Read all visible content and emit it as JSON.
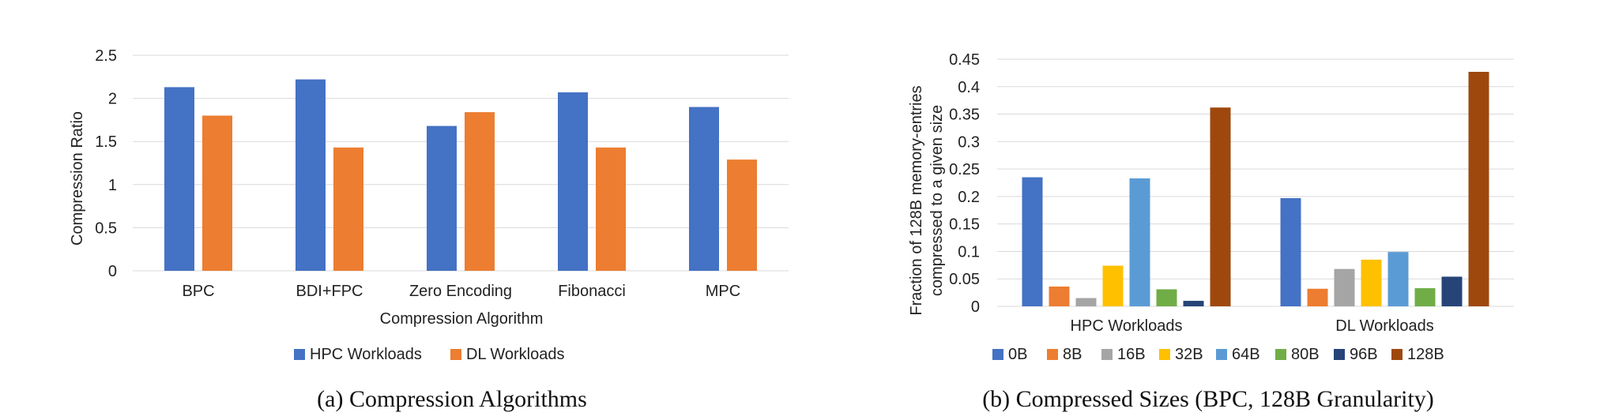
{
  "chart_data": [
    {
      "type": "bar",
      "caption": "(a) Compression Algorithms",
      "xlabel": "Compression Algorithm",
      "ylabel": "Compression Ratio",
      "ylim": [
        0,
        2.5
      ],
      "yticks": [
        "0",
        "0.5",
        "1",
        "1.5",
        "2",
        "2.5"
      ],
      "grid": true,
      "legend_position": "bottom",
      "categories": [
        "BPC",
        "BDI+FPC",
        "Zero Encoding",
        "Fibonacci",
        "MPC"
      ],
      "series": [
        {
          "name": "HPC Workloads",
          "color": "#4472C4",
          "values": [
            2.13,
            2.22,
            1.68,
            2.07,
            1.9
          ]
        },
        {
          "name": "DL Workloads",
          "color": "#ED7D31",
          "values": [
            1.8,
            1.43,
            1.84,
            1.43,
            1.29
          ]
        }
      ]
    },
    {
      "type": "bar",
      "caption": "(b) Compressed Sizes (BPC, 128B Granularity)",
      "xlabel": "",
      "ylabel_lines": [
        "Fraction of 128B memory-entries",
        "compressed to a given size"
      ],
      "ylim": [
        0,
        0.45
      ],
      "yticks": [
        "0",
        "0.05",
        "0.1",
        "0.15",
        "0.2",
        "0.25",
        "0.3",
        "0.35",
        "0.4",
        "0.45"
      ],
      "grid": true,
      "legend_position": "bottom",
      "categories": [
        "HPC Workloads",
        "DL Workloads"
      ],
      "series": [
        {
          "name": "0B",
          "color": "#4472C4",
          "values": [
            0.235,
            0.197
          ]
        },
        {
          "name": "8B",
          "color": "#ED7D31",
          "values": [
            0.036,
            0.032
          ]
        },
        {
          "name": "16B",
          "color": "#A5A5A5",
          "values": [
            0.015,
            0.068
          ]
        },
        {
          "name": "32B",
          "color": "#FFC000",
          "values": [
            0.074,
            0.085
          ]
        },
        {
          "name": "64B",
          "color": "#5B9BD5",
          "values": [
            0.233,
            0.099
          ]
        },
        {
          "name": "80B",
          "color": "#70AD47",
          "values": [
            0.031,
            0.033
          ]
        },
        {
          "name": "96B",
          "color": "#264478",
          "values": [
            0.01,
            0.054
          ]
        },
        {
          "name": "128B",
          "color": "#9E480E",
          "values": [
            0.362,
            0.427
          ]
        }
      ]
    }
  ]
}
